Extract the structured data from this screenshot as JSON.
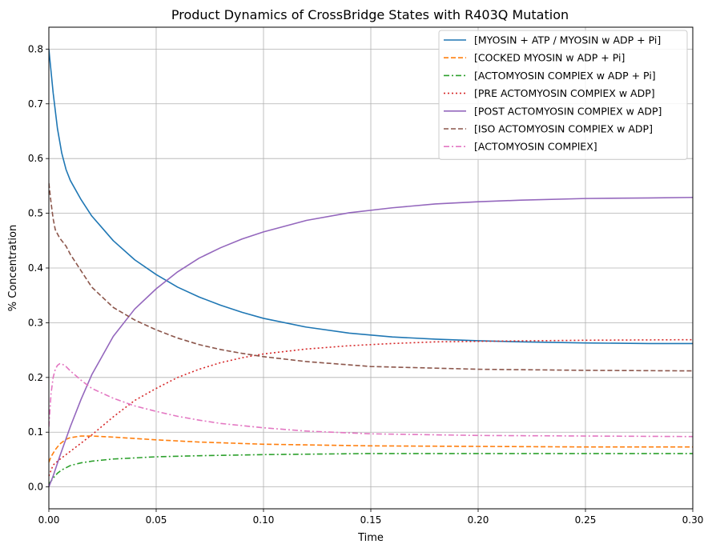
{
  "chart_data": {
    "type": "line",
    "title": "Product Dynamics of CrossBridge States with R403Q Mutation",
    "xlabel": "Time",
    "ylabel": "% Concentration",
    "xlim": [
      0.0,
      0.3
    ],
    "ylim": [
      -0.04,
      0.84
    ],
    "xticks": [
      0.0,
      0.05,
      0.1,
      0.15,
      0.2,
      0.25,
      0.3
    ],
    "xtick_labels": [
      "0.00",
      "0.05",
      "0.10",
      "0.15",
      "0.20",
      "0.25",
      "0.30"
    ],
    "yticks": [
      0.0,
      0.1,
      0.2,
      0.3,
      0.4,
      0.5,
      0.6,
      0.7,
      0.8
    ],
    "ytick_labels": [
      "0.0",
      "0.1",
      "0.2",
      "0.3",
      "0.4",
      "0.5",
      "0.6",
      "0.7",
      "0.8"
    ],
    "grid": true,
    "legend_position": "upper right",
    "series": [
      {
        "name": "[MYOSIN + ATP / MYOSIN w ADP + Pi]",
        "color": "#1f77b4",
        "dash": "solid",
        "x": [
          0,
          0.001,
          0.002,
          0.004,
          0.006,
          0.008,
          0.01,
          0.015,
          0.02,
          0.03,
          0.04,
          0.05,
          0.06,
          0.07,
          0.08,
          0.09,
          0.1,
          0.12,
          0.14,
          0.16,
          0.18,
          0.2,
          0.22,
          0.25,
          0.28,
          0.3
        ],
        "y": [
          0.8,
          0.76,
          0.72,
          0.655,
          0.61,
          0.58,
          0.56,
          0.525,
          0.495,
          0.45,
          0.415,
          0.388,
          0.365,
          0.347,
          0.332,
          0.319,
          0.308,
          0.292,
          0.281,
          0.274,
          0.27,
          0.267,
          0.265,
          0.263,
          0.262,
          0.262
        ]
      },
      {
        "name": "[COCKED MYOSIN w ADP + Pi]",
        "color": "#ff7f0e",
        "dash": "dashed",
        "x": [
          0,
          0.001,
          0.003,
          0.005,
          0.008,
          0.01,
          0.015,
          0.02,
          0.03,
          0.05,
          0.07,
          0.1,
          0.15,
          0.2,
          0.25,
          0.3
        ],
        "y": [
          0.045,
          0.055,
          0.068,
          0.078,
          0.087,
          0.09,
          0.093,
          0.093,
          0.091,
          0.086,
          0.082,
          0.078,
          0.075,
          0.074,
          0.073,
          0.073
        ]
      },
      {
        "name": "[ACTOMYOSIN COMPlEX w ADP + Pi]",
        "color": "#2ca02c",
        "dash": "dashdot",
        "x": [
          0,
          0.002,
          0.004,
          0.006,
          0.008,
          0.01,
          0.015,
          0.02,
          0.03,
          0.05,
          0.07,
          0.1,
          0.15,
          0.2,
          0.25,
          0.3
        ],
        "y": [
          0.005,
          0.016,
          0.025,
          0.031,
          0.035,
          0.039,
          0.044,
          0.047,
          0.051,
          0.055,
          0.057,
          0.059,
          0.061,
          0.061,
          0.061,
          0.061
        ]
      },
      {
        "name": "[PRE ACTOMYOSIN COMPlEX w ADP]",
        "color": "#d62728",
        "dash": "dotted",
        "x": [
          0,
          0.002,
          0.005,
          0.01,
          0.02,
          0.03,
          0.04,
          0.05,
          0.06,
          0.07,
          0.08,
          0.09,
          0.1,
          0.12,
          0.14,
          0.16,
          0.18,
          0.2,
          0.25,
          0.3
        ],
        "y": [
          0.02,
          0.04,
          0.05,
          0.065,
          0.095,
          0.128,
          0.158,
          0.18,
          0.2,
          0.215,
          0.227,
          0.236,
          0.243,
          0.252,
          0.258,
          0.262,
          0.265,
          0.266,
          0.268,
          0.269
        ]
      },
      {
        "name": "[POST ACTOMYOSIN COMPlEX w ADP]",
        "color": "#9467bd",
        "dash": "solid",
        "x": [
          0,
          0.002,
          0.005,
          0.01,
          0.015,
          0.02,
          0.03,
          0.04,
          0.05,
          0.06,
          0.07,
          0.08,
          0.09,
          0.1,
          0.12,
          0.14,
          0.16,
          0.18,
          0.2,
          0.22,
          0.25,
          0.28,
          0.3
        ],
        "y": [
          0.0,
          0.02,
          0.055,
          0.11,
          0.16,
          0.205,
          0.275,
          0.325,
          0.362,
          0.393,
          0.418,
          0.437,
          0.453,
          0.466,
          0.487,
          0.501,
          0.51,
          0.517,
          0.521,
          0.524,
          0.527,
          0.528,
          0.529
        ]
      },
      {
        "name": "[ISO ACTOMYOSIN COMPlEX w ADP]",
        "color": "#8c564b",
        "dash": "dashed",
        "x": [
          0,
          0.001,
          0.002,
          0.003,
          0.005,
          0.008,
          0.01,
          0.015,
          0.02,
          0.03,
          0.04,
          0.05,
          0.06,
          0.07,
          0.08,
          0.09,
          0.1,
          0.12,
          0.15,
          0.2,
          0.25,
          0.3
        ],
        "y": [
          0.555,
          0.52,
          0.49,
          0.47,
          0.455,
          0.44,
          0.425,
          0.395,
          0.365,
          0.328,
          0.305,
          0.287,
          0.272,
          0.26,
          0.251,
          0.244,
          0.238,
          0.229,
          0.22,
          0.215,
          0.213,
          0.212
        ]
      },
      {
        "name": "[ACTOMYOSIN COMPlEX]",
        "color": "#e377c2",
        "dash": "dashdot",
        "x": [
          0,
          0.001,
          0.002,
          0.003,
          0.004,
          0.005,
          0.006,
          0.008,
          0.01,
          0.015,
          0.02,
          0.03,
          0.04,
          0.05,
          0.06,
          0.07,
          0.08,
          0.1,
          0.12,
          0.15,
          0.2,
          0.25,
          0.3
        ],
        "y": [
          0.11,
          0.17,
          0.2,
          0.215,
          0.222,
          0.225,
          0.225,
          0.22,
          0.212,
          0.195,
          0.18,
          0.162,
          0.148,
          0.138,
          0.129,
          0.122,
          0.116,
          0.108,
          0.102,
          0.097,
          0.094,
          0.093,
          0.092
        ]
      }
    ]
  }
}
